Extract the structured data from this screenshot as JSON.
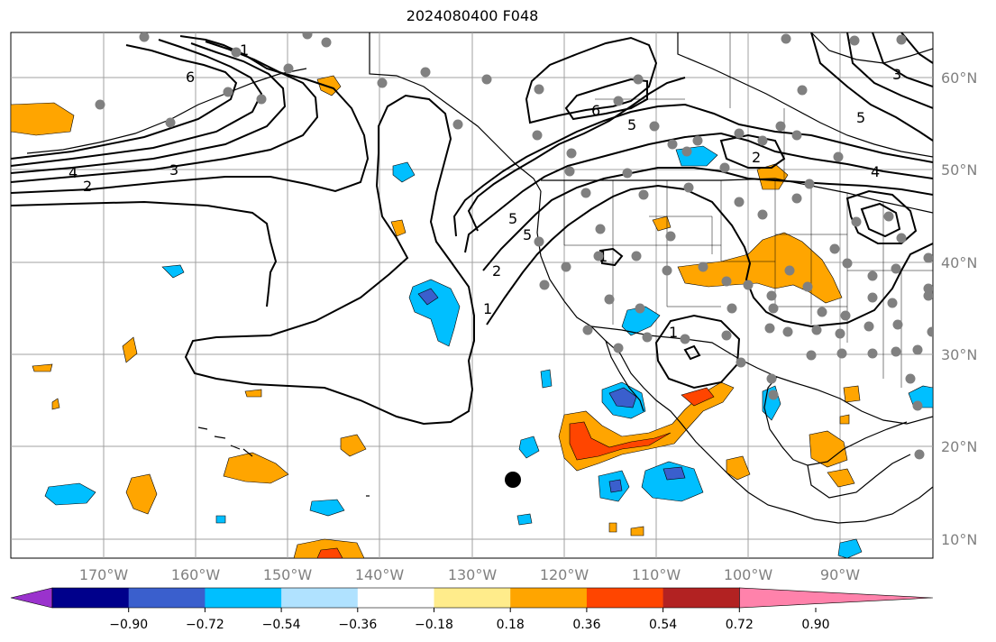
{
  "title": "2024080400 F048",
  "lon_labels": [
    "170°W",
    "160°W",
    "150°W",
    "140°W",
    "130°W",
    "120°W",
    "110°W",
    "100°W",
    "90°W"
  ],
  "lat_labels": [
    "60°N",
    "50°N",
    "40°N",
    "30°N",
    "20°N",
    "10°N"
  ],
  "colorbar": {
    "ticks": [
      "−0.90",
      "−0.72",
      "−0.54",
      "−0.36",
      "−0.18",
      "0.18",
      "0.36",
      "0.54",
      "0.72",
      "0.90"
    ],
    "colors": [
      "#9a32cd",
      "#00008b",
      "#3a5fcd",
      "#00bfff",
      "#b0e2ff",
      "#ffffff",
      "#ffec8b",
      "#ffa500",
      "#ff4500",
      "#b22222",
      "#ff82ab"
    ]
  },
  "contour_labels": [
    "1",
    "6",
    "3",
    "4",
    "2",
    "1",
    "5",
    "6",
    "5",
    "2",
    "4",
    "3",
    "5",
    "1",
    "2",
    "1",
    "5"
  ],
  "colors": {
    "land_outline": "#000000",
    "grid": "#a0a0a0",
    "station": "#808080"
  }
}
